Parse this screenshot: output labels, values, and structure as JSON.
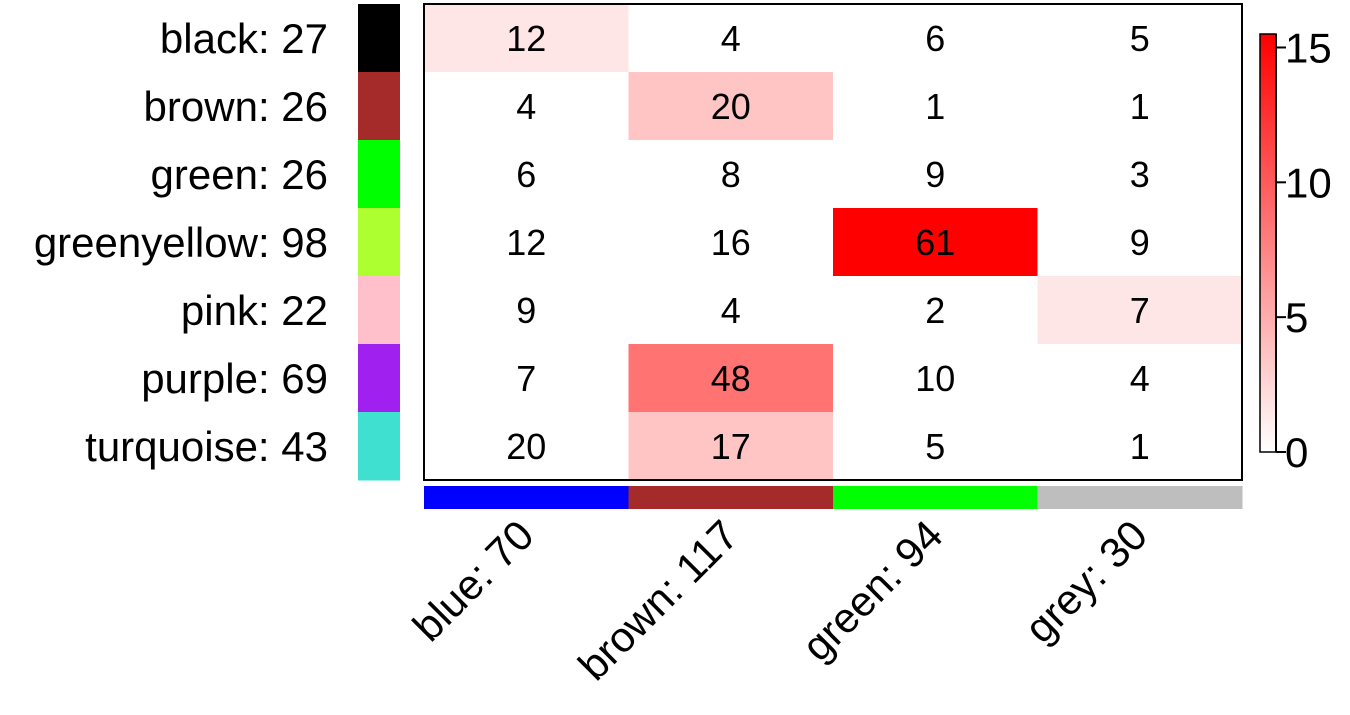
{
  "chart_data": {
    "type": "heatmap",
    "rows": [
      {
        "label": "black: 27",
        "color": "#000000"
      },
      {
        "label": "brown: 26",
        "color": "#a52a2a"
      },
      {
        "label": "green: 26",
        "color": "#00ff00"
      },
      {
        "label": "greenyellow: 98",
        "color": "#adff2f"
      },
      {
        "label": "pink: 22",
        "color": "#ffc0cb"
      },
      {
        "label": "purple: 69",
        "color": "#a020f0"
      },
      {
        "label": "turquoise: 43",
        "color": "#40e0d0"
      }
    ],
    "columns": [
      {
        "label": "blue: 70",
        "color": "#0000ff"
      },
      {
        "label": "brown: 117",
        "color": "#a52a2a"
      },
      {
        "label": "green: 94",
        "color": "#00ff00"
      },
      {
        "label": "grey: 30",
        "color": "#bebebe"
      }
    ],
    "cell_labels": [
      [
        12,
        4,
        6,
        5
      ],
      [
        4,
        20,
        1,
        1
      ],
      [
        6,
        8,
        9,
        3
      ],
      [
        12,
        16,
        61,
        9
      ],
      [
        9,
        4,
        2,
        7
      ],
      [
        7,
        48,
        10,
        4
      ],
      [
        20,
        17,
        5,
        1
      ]
    ],
    "color_values": [
      [
        1.5,
        0,
        0,
        0
      ],
      [
        0,
        3.5,
        0,
        0
      ],
      [
        0,
        0,
        0,
        0
      ],
      [
        0,
        0,
        15.5,
        0
      ],
      [
        0,
        0,
        0,
        1.5
      ],
      [
        0,
        8.5,
        0,
        0
      ],
      [
        0,
        3.5,
        0,
        0
      ]
    ],
    "colorbar": {
      "ticks": [
        0,
        5,
        10,
        15
      ],
      "range": [
        0,
        15.5
      ],
      "low_color": "#ffffff",
      "high_color": "#ff0000"
    }
  }
}
